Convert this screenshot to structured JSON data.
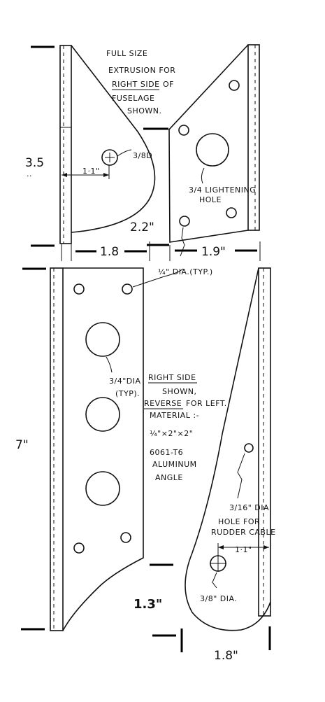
{
  "notes": {
    "full_size_line1": "FULL SIZE",
    "full_size_line2": "EXTRUSION FOR",
    "full_size_line3_u": "RIGHT SIDE",
    "full_size_line3_rest": "OF",
    "full_size_line4": "FUSELAGE",
    "full_size_line5": "SHOWN.",
    "right_side_title": "RIGHT SIDE",
    "shown": "SHOWN,",
    "reverse_u": "REVERSE",
    "reverse_rest": "FOR LEFT.",
    "material": "MATERIAL :-",
    "size": "¼\"×2\"×2\"",
    "alloy": "6061-T6",
    "aluminum": "ALUMINUM",
    "angle": "ANGLE"
  },
  "callouts": {
    "hole_3_8_d": "3/8D",
    "dim_1_1_top": "1·1\"",
    "lightening_line1": "3/4 LIGHTENING",
    "lightening_line2": "HOLE",
    "quarter_dia_typ": "¼\" DIA.(TYP.)",
    "three_quarter_dia": "3/4\"DIA",
    "typ": "(TYP).",
    "rudder_line1": "3/16\" DIA",
    "rudder_line2": "HOLE FOR",
    "rudder_line3": "RUDDER CABLE",
    "dim_1_1_bottom": "1·1\"",
    "three_eighths_dia": "3/8\" DIA."
  },
  "dimensions": {
    "d_3_5": "3.5",
    "d_3_5_sub": "..",
    "d_2_2": "2.2\"",
    "d_1_8_top": "1.8",
    "d_1_9": "1.9\"",
    "d_7": "7\"",
    "d_1_3": "1.3\"",
    "d_1_8_bottom": "1.8\""
  }
}
